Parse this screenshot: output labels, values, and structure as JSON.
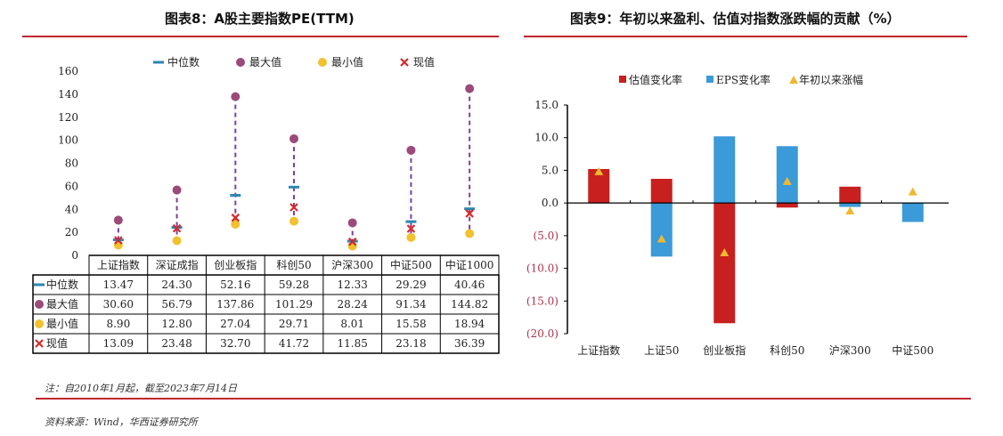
{
  "left_title": "图表8：A股主要指数PE(TTM)",
  "right_title": "图表9：年初以来盈利、估值对指数涨跌幅的贡献（%）",
  "note": "注：自2010年1月起，截至2023年7月14日",
  "source": "资料来源：Wind，华西证券研究所",
  "colors": {
    "accent": "#c0272d",
    "median": "#2e86b0",
    "max": "#9b4a7a",
    "min": "#f2c12e",
    "current": "#d62a2a",
    "valuation": "#c8201e",
    "eps": "#3b9ad8",
    "ytd": "#f0b82e"
  },
  "chart_data": [
    {
      "type": "scatter",
      "title": "A股主要指数PE(TTM)",
      "categories": [
        "上证指数",
        "深证成指",
        "创业板指",
        "科创50",
        "沪深300",
        "中证500",
        "中证1000"
      ],
      "ylim": [
        0,
        160
      ],
      "yticks": [
        0,
        20,
        40,
        60,
        80,
        100,
        120,
        140,
        160
      ],
      "legend_position": "top",
      "series": [
        {
          "name": "中位数",
          "marker": "dash",
          "values": [
            13.47,
            24.3,
            52.16,
            59.28,
            12.33,
            29.29,
            40.46
          ],
          "labels": [
            "13.47",
            "24.30",
            "52.16",
            "59.28",
            "12.33",
            "29.29",
            "40.46"
          ]
        },
        {
          "name": "最大值",
          "marker": "circle",
          "values": [
            30.6,
            56.79,
            137.86,
            101.29,
            28.24,
            91.34,
            144.82
          ],
          "labels": [
            "30.60",
            "56.79",
            "137.86",
            "101.29",
            "28.24",
            "91.34",
            "144.82"
          ]
        },
        {
          "name": "最小值",
          "marker": "circle",
          "values": [
            8.9,
            12.8,
            27.04,
            29.71,
            8.01,
            15.58,
            18.94
          ],
          "labels": [
            "8.90",
            "12.80",
            "27.04",
            "29.71",
            "8.01",
            "15.58",
            "18.94"
          ]
        },
        {
          "name": "现值",
          "marker": "x",
          "values": [
            13.09,
            23.48,
            32.7,
            41.72,
            11.85,
            23.18,
            36.39
          ],
          "labels": [
            "13.09",
            "23.48",
            "32.70",
            "41.72",
            "11.85",
            "23.18",
            "36.39"
          ]
        }
      ]
    },
    {
      "type": "bar",
      "title": "年初以来盈利、估值对指数涨跌幅的贡献（%）",
      "categories": [
        "上证指数",
        "上证50",
        "创业板指",
        "科创50",
        "沪深300",
        "中证500"
      ],
      "ylim": [
        -20,
        15
      ],
      "yticks": [
        "(20.0)",
        "(15.0)",
        "(10.0)",
        "(5.0)",
        "0.0",
        "5.0",
        "10.0",
        "15.0"
      ],
      "ytick_values": [
        -20,
        -15,
        -10,
        -5,
        0,
        5,
        10,
        15
      ],
      "legend_position": "top",
      "series": [
        {
          "name": "估值变化率",
          "values": [
            5.2,
            3.7,
            -18.4,
            -0.7,
            2.5,
            0.0
          ]
        },
        {
          "name": "EPS变化率",
          "values": [
            0.0,
            -8.2,
            10.2,
            8.7,
            -0.6,
            -2.9
          ]
        },
        {
          "name": "年初以来涨幅",
          "values": [
            4.8,
            -5.5,
            -7.6,
            3.3,
            -1.2,
            1.7
          ]
        }
      ]
    }
  ]
}
